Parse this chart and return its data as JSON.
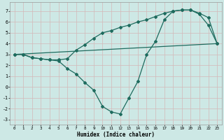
{
  "xlabel": "Humidex (Indice chaleur)",
  "bg_color": "#cde8e5",
  "grid_color": "#b8d8d5",
  "line_color": "#1e6b5e",
  "ylim": [
    -3.5,
    7.8
  ],
  "xlim": [
    -0.5,
    23.5
  ],
  "yticks": [
    -3,
    -2,
    -1,
    0,
    1,
    2,
    3,
    4,
    5,
    6,
    7
  ],
  "xticks": [
    0,
    1,
    2,
    3,
    4,
    5,
    6,
    7,
    8,
    9,
    10,
    11,
    12,
    13,
    14,
    15,
    16,
    17,
    18,
    19,
    20,
    21,
    22,
    23
  ],
  "xtick_labels": [
    "0",
    "1",
    "2",
    "3",
    "4",
    "5",
    "6",
    "7",
    "8",
    "9",
    "10",
    "11",
    "12",
    "13",
    "14",
    "15",
    "16",
    "17",
    "18",
    "19",
    "20",
    "21",
    "22",
    "23"
  ],
  "ytick_labels": [
    "7",
    "6",
    "5",
    "4",
    "3",
    "2",
    "1",
    "0",
    "-1",
    "-2",
    "-3"
  ],
  "line1_x": [
    0,
    1,
    2,
    3,
    4,
    5,
    6,
    7,
    8,
    9,
    10,
    11,
    12,
    13,
    14,
    15,
    16,
    17,
    18,
    19,
    20,
    21,
    22,
    23
  ],
  "line1_y": [
    3.0,
    3.0,
    2.7,
    2.6,
    2.5,
    2.5,
    2.6,
    3.4,
    3.9,
    4.5,
    5.0,
    5.2,
    5.5,
    5.7,
    6.0,
    6.2,
    6.5,
    6.8,
    7.0,
    7.1,
    7.1,
    6.8,
    6.4,
    4.0
  ],
  "line2_x": [
    0,
    1,
    2,
    3,
    4,
    5,
    6,
    7,
    8,
    9,
    10,
    11,
    12,
    13,
    14,
    15,
    16,
    17,
    18,
    19,
    20,
    21,
    22,
    23
  ],
  "line2_y": [
    3.0,
    3.0,
    2.7,
    2.6,
    2.5,
    2.4,
    1.7,
    1.2,
    0.4,
    -0.3,
    -1.8,
    -2.3,
    -2.5,
    -1.0,
    0.5,
    3.0,
    4.2,
    6.2,
    7.0,
    7.1,
    7.1,
    6.7,
    5.7,
    4.0
  ],
  "line3_x": [
    0,
    23
  ],
  "line3_y": [
    3.0,
    4.0
  ]
}
